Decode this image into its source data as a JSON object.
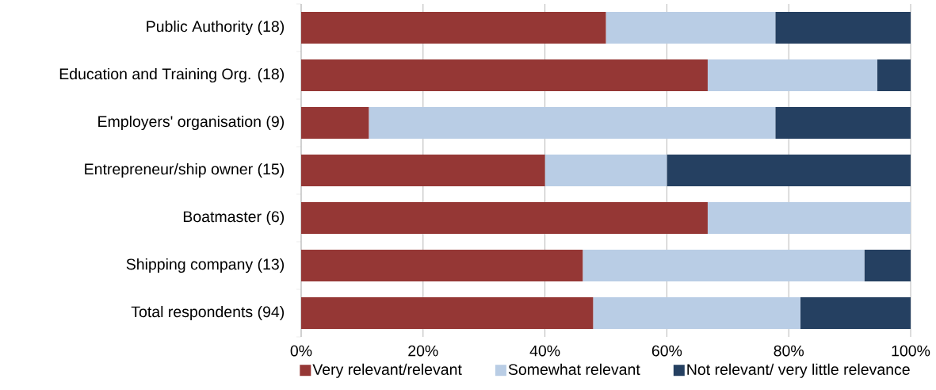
{
  "chart_data": {
    "type": "bar",
    "orientation": "horizontal",
    "stacked": true,
    "categories": [
      "Public Authority (18)",
      "Education and Training Org. (18)",
      "Employers' organisation (9)",
      "Entrepreneur/ship owner (15)",
      "Boatmaster (6)",
      "Shipping company (13)",
      "Total respondents (94)"
    ],
    "series": [
      {
        "name": "Very relevant/relevant",
        "color": "#953735",
        "values": [
          50.0,
          66.7,
          11.1,
          40.0,
          66.7,
          46.2,
          47.9
        ]
      },
      {
        "name": "Somewhat relevant",
        "color": "#b9cde5",
        "values": [
          27.8,
          27.8,
          66.7,
          20.0,
          33.3,
          46.2,
          34.0
        ]
      },
      {
        "name": "Not relevant/ very little relevance",
        "color": "#254061",
        "values": [
          22.2,
          5.5,
          22.2,
          40.0,
          0,
          7.6,
          18.1
        ]
      }
    ],
    "xlim": [
      0,
      100
    ],
    "xticks": [
      {
        "value": 0,
        "label": "0%"
      },
      {
        "value": 20,
        "label": "20%"
      },
      {
        "value": 40,
        "label": "40%"
      },
      {
        "value": 60,
        "label": "60%"
      },
      {
        "value": 80,
        "label": "80%"
      },
      {
        "value": 100,
        "label": "100%"
      }
    ],
    "grid": "x",
    "legend": "bottom"
  }
}
